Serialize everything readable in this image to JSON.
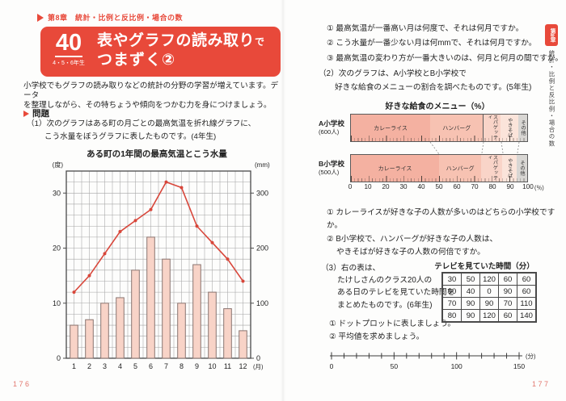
{
  "colors": {
    "accent": "#e8493a",
    "page_num": "#e2776e",
    "bar_fill": "#f8d3c7",
    "bar_stroke": "#8a7570",
    "line": "#d8463a",
    "grid": "#a5a5a5",
    "frame": "#4a4a4a",
    "segments": [
      "#f4b1a1",
      "#f7c2b2",
      "#f9d4c8",
      "#fbe4da",
      "#d8d6d3"
    ],
    "connector": "#8a8a8a"
  },
  "left_page": {
    "chapter_header": "第8章　統計・比例と反比例・場合の数",
    "lesson_no": "40",
    "grades": "4・5・6年生",
    "title_main": "表やグラフの読み取り",
    "title_small": "で",
    "title_line2": "つまずく②",
    "intro_lines": [
      "小学校でもグラフの読み取りなどの統計の分野の学習が増えています。データ",
      "を整理しながら、その特ちょうや傾向をつかむ力を身につけましょう。"
    ],
    "problem_label": "問題",
    "q1_lines": [
      "（1）次のグラフはある町の月ごとの最高気温を折れ線グラフに、",
      "こう水量をぼうグラフに表したものです。(4年生)"
    ],
    "page_number": "176"
  },
  "right_page": {
    "q1_items": [
      "① 最高気温が一番高い月は何度で、それは何月ですか。",
      "② こう水量が一番少ない月は何mmで、それは何月ですか。",
      "③ 最高気温の変わり方が一番大きいのは、何月と何月の間ですか。"
    ],
    "q2_intro": [
      "（2）次のグラフは、A小学校とB小学校で",
      "好きな給食のメニューの割合を調べたものです。(5年生)"
    ],
    "q2_items": [
      "① カレーライスが好きな子の人数が多いのはどちらの小学校ですか。",
      "② B小学校で、ハンバーグが好きな子の人数は、",
      "やきそばが好きな子の人数の何倍ですか。"
    ],
    "q3_lines": [
      "（3）右の表は、",
      "たけしさんのクラス20人の",
      "ある日のテレビを見ていた時間を",
      "まとめたものです。(6年生)"
    ],
    "q3_items": [
      "① ドットプロットに表しましょう。",
      "② 平均値を求めましょう。"
    ],
    "side_tab_badge": "第8章",
    "side_tab_label": "統計・比例と反比例・場合の数",
    "page_number": "177"
  },
  "chart_data": [
    {
      "type": "combo-bar-line",
      "title": "ある町の1年間の最高気温とこう水量",
      "categories": [
        1,
        2,
        3,
        4,
        5,
        6,
        7,
        8,
        9,
        10,
        11,
        12
      ],
      "series": [
        {
          "name": "最高気温",
          "type": "line",
          "axis": "left",
          "values": [
            12,
            15,
            19,
            23,
            25,
            27,
            32,
            31,
            24,
            21,
            18,
            14
          ]
        },
        {
          "name": "こう水量",
          "type": "bar",
          "axis": "right",
          "values": [
            60,
            70,
            100,
            110,
            160,
            220,
            180,
            100,
            170,
            120,
            90,
            50
          ]
        }
      ],
      "left_axis": {
        "unit": "(度)",
        "ticks": [
          0,
          10,
          20,
          30
        ],
        "max": 34
      },
      "right_axis": {
        "unit": "(mm)",
        "ticks": [
          0,
          100,
          200,
          300
        ],
        "max": 340
      },
      "xlabel": "(月)",
      "grid": "on",
      "legend": "none"
    },
    {
      "type": "stacked-bar-100",
      "title": "好きな給食のメニュー（%）",
      "segment_names": [
        "カレーライス",
        "ハンバーグ",
        "スパゲッティ",
        "やきそば",
        "その他"
      ],
      "rows": [
        {
          "label": "A小学校",
          "sublabel": "(600人)",
          "values": [
            45,
            30,
            10,
            10,
            5
          ]
        },
        {
          "label": "B小学校",
          "sublabel": "(500人)",
          "values": [
            50,
            24,
            12,
            8,
            6
          ]
        }
      ],
      "x_ticks": [
        0,
        10,
        20,
        30,
        40,
        50,
        60,
        70,
        80,
        90,
        100
      ],
      "x_unit": "(％)"
    },
    {
      "type": "table",
      "title": "テレビを見ていた時間（分）",
      "values": [
        [
          30,
          50,
          120,
          60,
          60
        ],
        [
          90,
          40,
          0,
          90,
          60
        ],
        [
          70,
          90,
          90,
          70,
          110
        ],
        [
          80,
          90,
          120,
          60,
          140
        ]
      ]
    },
    {
      "type": "number-line",
      "min": 0,
      "max": 150,
      "minor_step": 10,
      "labels": [
        0,
        50,
        100,
        150
      ],
      "unit": "(分)"
    }
  ]
}
